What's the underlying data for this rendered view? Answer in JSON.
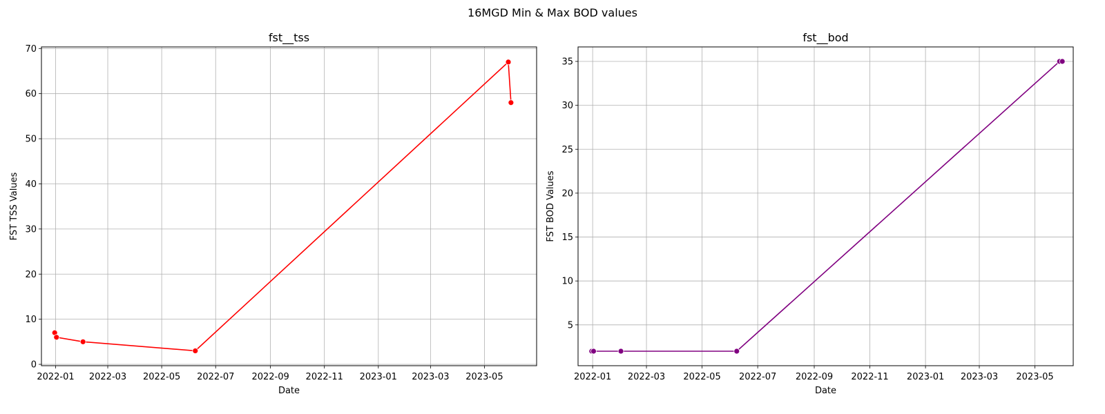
{
  "figure": {
    "title": "16MGD Min & Max BOD values"
  },
  "chart_data": [
    {
      "type": "line",
      "title": "fst__tss",
      "xlabel": "Date",
      "ylabel": "FST TSS Values",
      "x_type": "date",
      "xlim": [
        "2021-12-16",
        "2023-06-29"
      ],
      "ylim": [
        -0.3,
        70.35
      ],
      "xticks": [
        "2022-01",
        "2022-03",
        "2022-05",
        "2022-07",
        "2022-09",
        "2022-11",
        "2023-01",
        "2023-03",
        "2023-05"
      ],
      "yticks": [
        0,
        10,
        20,
        30,
        40,
        50,
        60,
        70
      ],
      "grid": true,
      "color": "#ff0000",
      "series": [
        {
          "x": [
            "2021-12-31",
            "2022-01-02",
            "2022-02-01",
            "2022-06-08",
            "2023-05-28",
            "2023-05-31"
          ],
          "y": [
            7,
            6,
            5,
            3,
            67,
            58
          ]
        }
      ]
    },
    {
      "type": "line",
      "title": "fst__bod",
      "xlabel": "Date",
      "ylabel": "FST BOD Values",
      "x_type": "date",
      "xlim": [
        "2021-12-16",
        "2023-06-12"
      ],
      "ylim": [
        0.35,
        36.65
      ],
      "xticks": [
        "2022-01",
        "2022-03",
        "2022-05",
        "2022-07",
        "2022-09",
        "2022-11",
        "2023-01",
        "2023-03",
        "2023-05"
      ],
      "yticks": [
        5,
        10,
        15,
        20,
        25,
        30,
        35
      ],
      "grid": true,
      "color": "#800080",
      "series": [
        {
          "x": [
            "2021-12-31",
            "2022-01-02",
            "2022-02-01",
            "2022-06-08",
            "2023-05-28",
            "2023-05-31"
          ],
          "y": [
            2,
            2,
            2,
            2,
            35,
            35
          ]
        }
      ]
    }
  ]
}
